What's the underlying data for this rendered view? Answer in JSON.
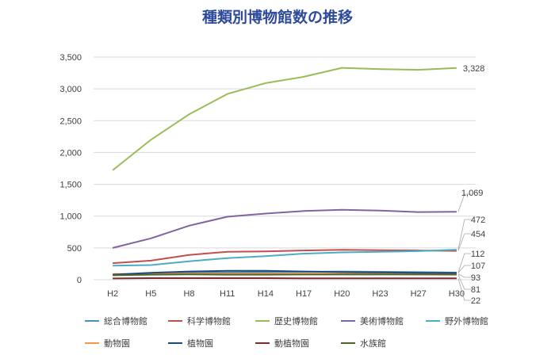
{
  "chart_data": {
    "type": "line",
    "title": "種類別博物館数の推移",
    "xlabel": "",
    "ylabel": "",
    "ylim": [
      0,
      3500
    ],
    "yticks": [
      "3,500",
      "3,000",
      "2,500",
      "2,000",
      "1,500",
      "1,000",
      "500",
      "0"
    ],
    "ytick_values": [
      3500,
      3000,
      2500,
      2000,
      1500,
      1000,
      500,
      0
    ],
    "grid": true,
    "legend": "bottom",
    "categories": [
      "H2",
      "H5",
      "H8",
      "H11",
      "H14",
      "H17",
      "H20",
      "H23",
      "H27",
      "H30"
    ],
    "series": [
      {
        "name": "総合博物館",
        "color": "#4a8fb5",
        "values": [
          80,
          100,
          110,
          115,
          120,
          125,
          130,
          125,
          120,
          112
        ]
      },
      {
        "name": "科学博物館",
        "color": "#c0504d",
        "values": [
          260,
          300,
          390,
          440,
          445,
          460,
          470,
          465,
          460,
          454
        ]
      },
      {
        "name": "歴史博物館",
        "color": "#9bbb59",
        "values": [
          1720,
          2200,
          2600,
          2920,
          3090,
          3190,
          3330,
          3310,
          3300,
          3328
        ]
      },
      {
        "name": "美術博物館",
        "color": "#8064a2",
        "values": [
          500,
          650,
          850,
          990,
          1040,
          1080,
          1100,
          1087,
          1064,
          1069
        ]
      },
      {
        "name": "野外博物館",
        "color": "#4bacc6",
        "values": [
          220,
          230,
          290,
          340,
          370,
          410,
          430,
          440,
          450,
          472
        ]
      },
      {
        "name": "動物園",
        "color": "#f79646",
        "values": [
          90,
          90,
          95,
          95,
          95,
          95,
          94,
          94,
          93,
          93
        ]
      },
      {
        "name": "植物園",
        "color": "#1f497d",
        "values": [
          80,
          110,
          130,
          140,
          140,
          130,
          120,
          115,
          110,
          107
        ]
      },
      {
        "name": "動植物園",
        "color": "#7b2c2c",
        "values": [
          20,
          25,
          25,
          25,
          25,
          22,
          22,
          22,
          22,
          22
        ]
      },
      {
        "name": "水族館",
        "color": "#4f6228",
        "values": [
          70,
          80,
          85,
          80,
          80,
          82,
          82,
          82,
          82,
          81
        ]
      }
    ],
    "end_labels": [
      "3,328",
      "1,069",
      "472",
      "454",
      "112",
      "107",
      "93",
      "81",
      "22"
    ]
  }
}
